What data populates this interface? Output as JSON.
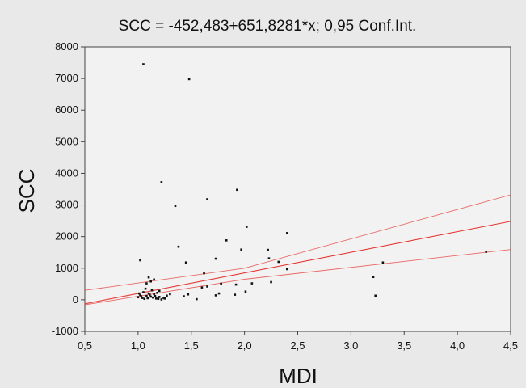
{
  "chart_data": {
    "type": "scatter",
    "title": "SCC = -452,483+651,8281*x; 0,95 Conf.Int.",
    "xlabel": "MDI",
    "ylabel": "SCC",
    "xlim": [
      0.5,
      4.5
    ],
    "ylim": [
      -1000,
      8000
    ],
    "xticks": [
      0.5,
      1.0,
      1.5,
      2.0,
      2.5,
      3.0,
      3.5,
      4.0,
      4.5
    ],
    "xtick_labels": [
      "0,5",
      "1,0",
      "1,5",
      "2,0",
      "2,5",
      "3,0",
      "3,5",
      "4,0",
      "4,5"
    ],
    "yticks": [
      -1000,
      0,
      1000,
      2000,
      3000,
      4000,
      5000,
      6000,
      7000,
      8000
    ],
    "ytick_labels": [
      "-1000",
      "0",
      "1000",
      "2000",
      "3000",
      "4000",
      "5000",
      "6000",
      "7000",
      "8000"
    ],
    "regression": {
      "intercept": -452.483,
      "slope": 651.8281
    },
    "confidence_band": {
      "lower": [
        [
          0.5,
          -160
        ],
        [
          2.0,
          650
        ],
        [
          4.5,
          1590
        ]
      ],
      "upper": [
        [
          0.5,
          300
        ],
        [
          2.0,
          1000
        ],
        [
          4.5,
          3320
        ]
      ]
    },
    "line_color": "#e53935",
    "grid": false,
    "points": [
      {
        "x": 1.02,
        "y": 1250
      },
      {
        "x": 1.05,
        "y": 7450
      },
      {
        "x": 1.48,
        "y": 6980
      },
      {
        "x": 1.22,
        "y": 3720
      },
      {
        "x": 1.65,
        "y": 3180
      },
      {
        "x": 1.93,
        "y": 3480
      },
      {
        "x": 1.35,
        "y": 2970
      },
      {
        "x": 2.02,
        "y": 2310
      },
      {
        "x": 2.4,
        "y": 2110
      },
      {
        "x": 1.83,
        "y": 1880
      },
      {
        "x": 1.38,
        "y": 1680
      },
      {
        "x": 1.97,
        "y": 1590
      },
      {
        "x": 2.22,
        "y": 1580
      },
      {
        "x": 2.23,
        "y": 1310
      },
      {
        "x": 1.73,
        "y": 1300
      },
      {
        "x": 2.32,
        "y": 1200
      },
      {
        "x": 1.45,
        "y": 1180
      },
      {
        "x": 2.4,
        "y": 970
      },
      {
        "x": 1.62,
        "y": 840
      },
      {
        "x": 1.1,
        "y": 710
      },
      {
        "x": 1.12,
        "y": 580
      },
      {
        "x": 1.15,
        "y": 640
      },
      {
        "x": 1.08,
        "y": 520
      },
      {
        "x": 1.92,
        "y": 480
      },
      {
        "x": 1.78,
        "y": 510
      },
      {
        "x": 2.07,
        "y": 520
      },
      {
        "x": 2.25,
        "y": 560
      },
      {
        "x": 1.65,
        "y": 420
      },
      {
        "x": 1.6,
        "y": 390
      },
      {
        "x": 1.07,
        "y": 350
      },
      {
        "x": 1.13,
        "y": 300
      },
      {
        "x": 1.2,
        "y": 280
      },
      {
        "x": 1.05,
        "y": 240
      },
      {
        "x": 1.1,
        "y": 200
      },
      {
        "x": 1.15,
        "y": 180
      },
      {
        "x": 1.18,
        "y": 220
      },
      {
        "x": 1.02,
        "y": 150
      },
      {
        "x": 1.08,
        "y": 120
      },
      {
        "x": 1.12,
        "y": 100
      },
      {
        "x": 1.0,
        "y": 80
      },
      {
        "x": 1.04,
        "y": 60
      },
      {
        "x": 1.06,
        "y": 30
      },
      {
        "x": 1.09,
        "y": 50
      },
      {
        "x": 1.14,
        "y": 70
      },
      {
        "x": 1.17,
        "y": 40
      },
      {
        "x": 1.2,
        "y": 90
      },
      {
        "x": 1.24,
        "y": 60
      },
      {
        "x": 1.27,
        "y": 130
      },
      {
        "x": 1.3,
        "y": 180
      },
      {
        "x": 1.43,
        "y": 110
      },
      {
        "x": 1.47,
        "y": 170
      },
      {
        "x": 1.55,
        "y": 20
      },
      {
        "x": 1.73,
        "y": 140
      },
      {
        "x": 1.76,
        "y": 200
      },
      {
        "x": 1.91,
        "y": 160
      },
      {
        "x": 2.01,
        "y": 260
      },
      {
        "x": 3.21,
        "y": 720
      },
      {
        "x": 3.23,
        "y": 130
      },
      {
        "x": 3.3,
        "y": 1180
      },
      {
        "x": 4.27,
        "y": 1520
      },
      {
        "x": 1.01,
        "y": 200
      },
      {
        "x": 1.03,
        "y": 110
      },
      {
        "x": 1.11,
        "y": 160
      },
      {
        "x": 1.16,
        "y": 120
      },
      {
        "x": 1.19,
        "y": 30
      },
      {
        "x": 1.22,
        "y": 10
      },
      {
        "x": 1.25,
        "y": 40
      }
    ]
  }
}
